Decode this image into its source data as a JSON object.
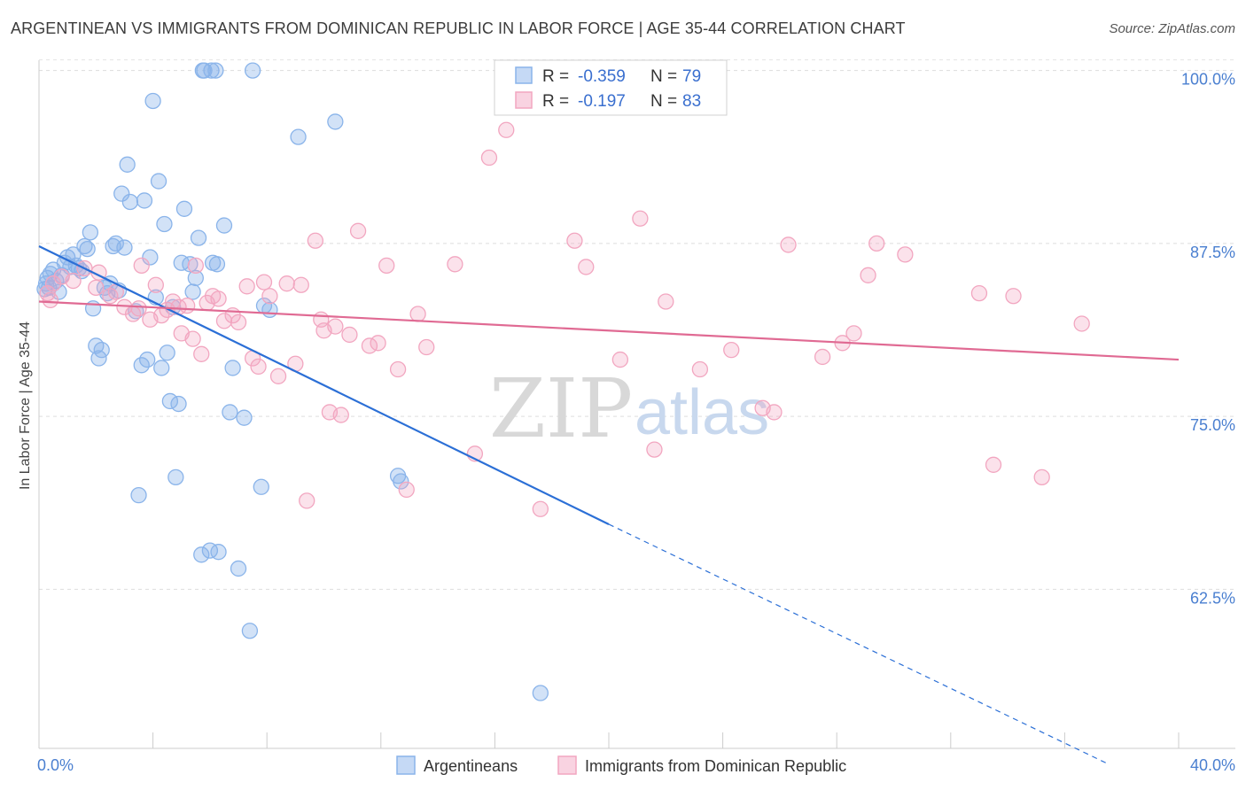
{
  "title": "ARGENTINEAN VS IMMIGRANTS FROM DOMINICAN REPUBLIC IN LABOR FORCE | AGE 35-44 CORRELATION CHART",
  "source": "Source: ZipAtlas.com",
  "watermark": {
    "zip": "ZIP",
    "atlas": "atlas"
  },
  "legend_box": {
    "r_label": "R =",
    "n_label": "N =",
    "rows": [
      {
        "r": "-0.359",
        "n": "79",
        "color": "#8ab4ea"
      },
      {
        "r": "-0.197",
        "n": "83",
        "color": "#f2a6c0"
      }
    ]
  },
  "bottom_legend": [
    "Argentineans",
    "Immigrants from Dominican Republic"
  ],
  "chart_data": {
    "type": "scatter",
    "xlabel": "",
    "ylabel": "In Labor Force | Age 35-44",
    "xlim": [
      0,
      40
    ],
    "ylim": [
      51,
      101
    ],
    "x_tick_labels": [
      "0.0%",
      "40.0%"
    ],
    "y_ticks": [
      62.5,
      75.0,
      87.5,
      100.0
    ],
    "y_tick_labels": [
      "62.5%",
      "75.0%",
      "87.5%",
      "100.0%"
    ],
    "grid": "horizontal dashed",
    "legend_position": "top-center",
    "series": [
      {
        "name": "Argentineans",
        "color": "#8ab4ea",
        "line_color": "#2b6fd6",
        "r": -0.359,
        "n": 79,
        "trend": {
          "x": [
            0,
            20
          ],
          "y": [
            87.3,
            67.2
          ],
          "dashed_to": [
            37.5,
            49.9
          ]
        },
        "points": [
          [
            0.2,
            84.2
          ],
          [
            0.25,
            84.6
          ],
          [
            0.3,
            85.0
          ],
          [
            0.35,
            84.3
          ],
          [
            0.4,
            85.3
          ],
          [
            0.5,
            85.6
          ],
          [
            0.6,
            84.8
          ],
          [
            0.7,
            84.0
          ],
          [
            0.8,
            85.2
          ],
          [
            0.9,
            86.1
          ],
          [
            1.0,
            86.5
          ],
          [
            1.1,
            85.8
          ],
          [
            1.2,
            86.7
          ],
          [
            1.3,
            85.9
          ],
          [
            1.4,
            85.7
          ],
          [
            1.5,
            85.5
          ],
          [
            1.6,
            87.3
          ],
          [
            1.7,
            87.1
          ],
          [
            1.8,
            88.3
          ],
          [
            1.9,
            82.8
          ],
          [
            2.0,
            80.1
          ],
          [
            2.1,
            79.2
          ],
          [
            2.2,
            79.8
          ],
          [
            2.3,
            84.3
          ],
          [
            2.4,
            83.9
          ],
          [
            2.5,
            84.6
          ],
          [
            2.6,
            87.3
          ],
          [
            2.7,
            87.5
          ],
          [
            2.8,
            84.1
          ],
          [
            2.9,
            91.1
          ],
          [
            3.0,
            87.2
          ],
          [
            3.1,
            93.2
          ],
          [
            3.2,
            90.5
          ],
          [
            3.4,
            82.6
          ],
          [
            3.5,
            69.3
          ],
          [
            3.6,
            78.7
          ],
          [
            3.7,
            90.6
          ],
          [
            3.8,
            79.1
          ],
          [
            3.9,
            86.5
          ],
          [
            4.0,
            97.8
          ],
          [
            4.1,
            83.6
          ],
          [
            4.2,
            92.0
          ],
          [
            4.3,
            78.5
          ],
          [
            4.4,
            88.9
          ],
          [
            4.5,
            79.6
          ],
          [
            4.6,
            76.1
          ],
          [
            4.7,
            82.9
          ],
          [
            4.8,
            70.6
          ],
          [
            4.9,
            75.9
          ],
          [
            5.0,
            86.1
          ],
          [
            5.1,
            90.0
          ],
          [
            5.3,
            86.0
          ],
          [
            5.4,
            84.0
          ],
          [
            5.5,
            85.0
          ],
          [
            5.6,
            87.9
          ],
          [
            5.7,
            65.0
          ],
          [
            5.75,
            100.0
          ],
          [
            5.8,
            100.0
          ],
          [
            6.0,
            65.3
          ],
          [
            6.05,
            100.0
          ],
          [
            6.1,
            86.1
          ],
          [
            6.2,
            100.0
          ],
          [
            6.25,
            86.0
          ],
          [
            6.3,
            65.2
          ],
          [
            6.5,
            88.8
          ],
          [
            6.7,
            75.3
          ],
          [
            6.8,
            78.5
          ],
          [
            7.0,
            64.0
          ],
          [
            7.2,
            74.9
          ],
          [
            7.4,
            59.5
          ],
          [
            7.5,
            100.0
          ],
          [
            7.8,
            69.9
          ],
          [
            7.9,
            83.0
          ],
          [
            8.1,
            82.7
          ],
          [
            9.1,
            95.2
          ],
          [
            10.4,
            96.3
          ],
          [
            12.6,
            70.7
          ],
          [
            12.7,
            70.3
          ],
          [
            17.6,
            55.0
          ]
        ]
      },
      {
        "name": "Immigrants from Dominican Republic",
        "color": "#f2a6c0",
        "line_color": "#e06a93",
        "r": -0.197,
        "n": 83,
        "trend": {
          "x": [
            0,
            40
          ],
          "y": [
            83.3,
            79.1
          ]
        },
        "points": [
          [
            0.3,
            83.9
          ],
          [
            0.5,
            84.6
          ],
          [
            0.8,
            85.1
          ],
          [
            1.2,
            84.8
          ],
          [
            1.6,
            85.7
          ],
          [
            2.0,
            84.3
          ],
          [
            2.1,
            85.4
          ],
          [
            2.5,
            83.7
          ],
          [
            2.7,
            84.0
          ],
          [
            3.0,
            82.9
          ],
          [
            3.3,
            82.4
          ],
          [
            3.5,
            82.8
          ],
          [
            3.6,
            85.9
          ],
          [
            3.9,
            82.0
          ],
          [
            4.1,
            84.5
          ],
          [
            4.3,
            82.3
          ],
          [
            4.5,
            82.7
          ],
          [
            4.7,
            83.3
          ],
          [
            4.9,
            82.9
          ],
          [
            5.0,
            81.0
          ],
          [
            5.2,
            83.0
          ],
          [
            5.4,
            80.6
          ],
          [
            5.5,
            85.9
          ],
          [
            5.7,
            79.5
          ],
          [
            5.9,
            83.2
          ],
          [
            6.1,
            83.7
          ],
          [
            6.3,
            83.5
          ],
          [
            6.5,
            81.9
          ],
          [
            6.8,
            82.3
          ],
          [
            7.0,
            81.8
          ],
          [
            7.3,
            84.4
          ],
          [
            7.5,
            79.2
          ],
          [
            7.7,
            78.6
          ],
          [
            7.9,
            84.7
          ],
          [
            8.1,
            83.7
          ],
          [
            8.4,
            77.9
          ],
          [
            8.7,
            84.6
          ],
          [
            9.0,
            78.8
          ],
          [
            9.2,
            84.5
          ],
          [
            9.4,
            68.9
          ],
          [
            9.7,
            87.7
          ],
          [
            9.9,
            82.0
          ],
          [
            10.0,
            81.2
          ],
          [
            10.2,
            75.3
          ],
          [
            10.4,
            81.5
          ],
          [
            10.6,
            75.1
          ],
          [
            10.9,
            80.9
          ],
          [
            11.2,
            88.4
          ],
          [
            11.6,
            80.1
          ],
          [
            11.9,
            80.3
          ],
          [
            12.2,
            85.9
          ],
          [
            12.6,
            78.4
          ],
          [
            12.9,
            69.7
          ],
          [
            13.3,
            82.4
          ],
          [
            13.6,
            80.0
          ],
          [
            14.6,
            86.0
          ],
          [
            15.3,
            72.3
          ],
          [
            15.8,
            93.7
          ],
          [
            16.4,
            95.7
          ],
          [
            17.6,
            68.3
          ],
          [
            18.8,
            87.7
          ],
          [
            19.2,
            85.8
          ],
          [
            20.4,
            79.1
          ],
          [
            21.1,
            89.3
          ],
          [
            21.6,
            72.6
          ],
          [
            22.0,
            83.3
          ],
          [
            23.2,
            78.4
          ],
          [
            24.3,
            79.8
          ],
          [
            25.4,
            75.6
          ],
          [
            25.8,
            75.3
          ],
          [
            26.3,
            87.4
          ],
          [
            27.5,
            79.3
          ],
          [
            28.2,
            80.3
          ],
          [
            28.6,
            81.0
          ],
          [
            29.1,
            85.2
          ],
          [
            29.4,
            87.5
          ],
          [
            30.4,
            86.7
          ],
          [
            33.0,
            83.9
          ],
          [
            33.5,
            71.5
          ],
          [
            34.2,
            83.7
          ],
          [
            35.2,
            70.6
          ],
          [
            36.6,
            81.7
          ],
          [
            0.4,
            83.4
          ]
        ]
      }
    ]
  }
}
